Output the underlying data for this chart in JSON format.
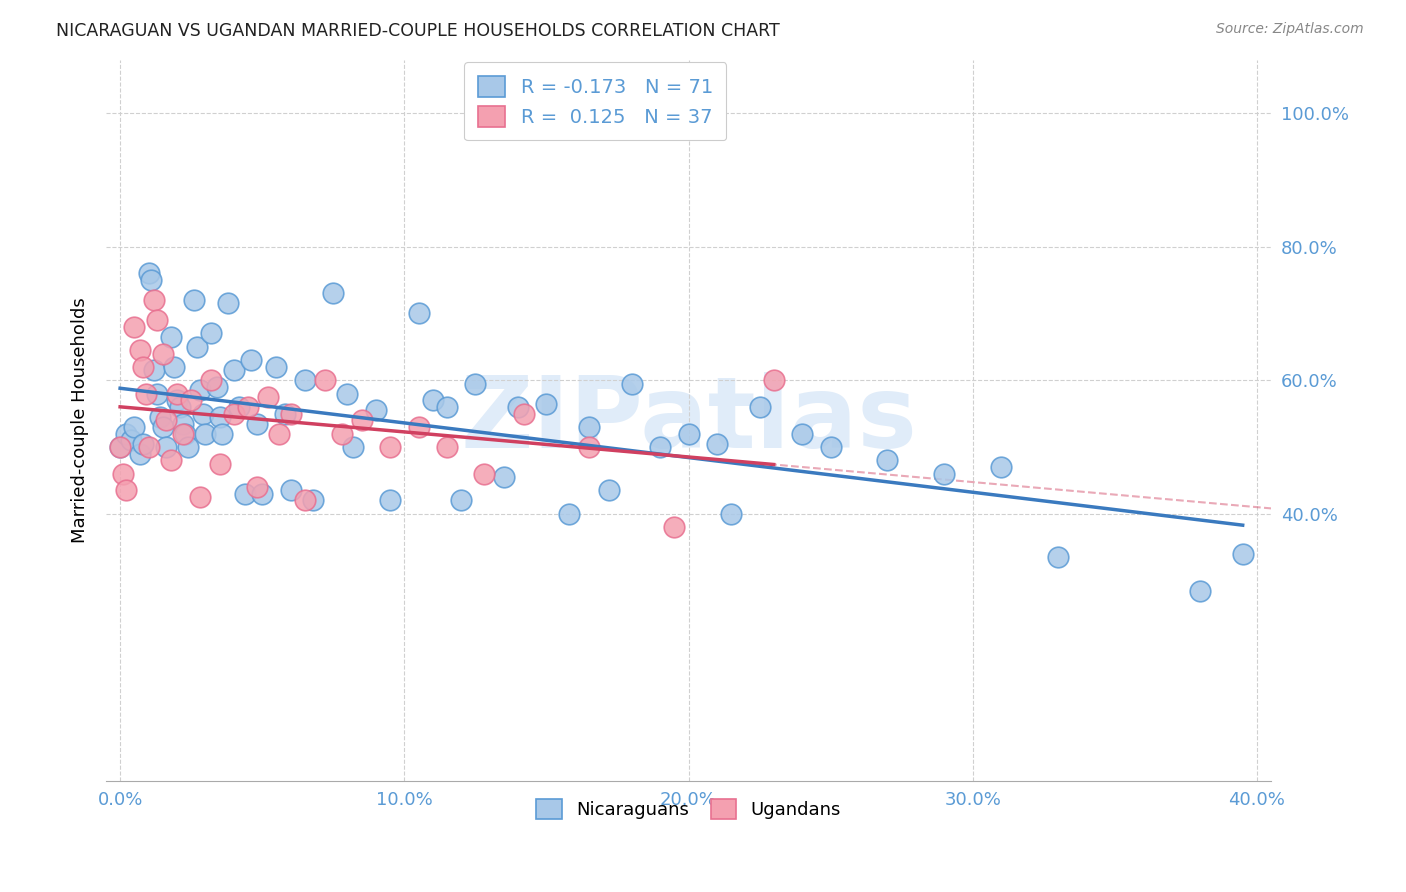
{
  "title": "NICARAGUAN VS UGANDAN MARRIED-COUPLE HOUSEHOLDS CORRELATION CHART",
  "source": "Source: ZipAtlas.com",
  "tick_color": "#5b9bd5",
  "ylabel": "Married-couple Households",
  "xlim": [
    -0.005,
    0.405
  ],
  "ylim": [
    0.0,
    1.08
  ],
  "xticks": [
    0.0,
    0.1,
    0.2,
    0.3,
    0.4
  ],
  "yticks": [
    0.4,
    0.6,
    0.8,
    1.0
  ],
  "ytick_labels": [
    "40.0%",
    "60.0%",
    "80.0%",
    "100.0%"
  ],
  "xtick_labels": [
    "0.0%",
    "10.0%",
    "20.0%",
    "30.0%",
    "40.0%"
  ],
  "legend_labels": [
    "Nicaraguans",
    "Ugandans"
  ],
  "blue_face_color": "#a8c8e8",
  "blue_edge_color": "#5b9bd5",
  "pink_face_color": "#f4a0b0",
  "pink_edge_color": "#e87090",
  "blue_line_color": "#3a7abf",
  "pink_line_color": "#d04060",
  "pink_dash_color": "#d04060",
  "watermark_text": "ZIPatlas",
  "watermark_color": "#cce0f5",
  "blue_R": -0.173,
  "pink_R": 0.125,
  "blue_N": 71,
  "pink_N": 37,
  "nicaraguan_x": [
    0.0,
    0.002,
    0.004,
    0.005,
    0.007,
    0.008,
    0.01,
    0.011,
    0.012,
    0.013,
    0.014,
    0.015,
    0.016,
    0.018,
    0.019,
    0.02,
    0.021,
    0.022,
    0.023,
    0.024,
    0.026,
    0.027,
    0.028,
    0.029,
    0.03,
    0.032,
    0.034,
    0.035,
    0.036,
    0.038,
    0.04,
    0.042,
    0.044,
    0.046,
    0.048,
    0.05,
    0.055,
    0.058,
    0.06,
    0.065,
    0.068,
    0.075,
    0.08,
    0.082,
    0.09,
    0.095,
    0.105,
    0.11,
    0.115,
    0.12,
    0.125,
    0.135,
    0.14,
    0.15,
    0.158,
    0.165,
    0.172,
    0.18,
    0.19,
    0.2,
    0.21,
    0.215,
    0.225,
    0.24,
    0.25,
    0.27,
    0.29,
    0.31,
    0.33,
    0.38,
    0.395
  ],
  "nicaraguan_y": [
    0.5,
    0.52,
    0.51,
    0.53,
    0.49,
    0.505,
    0.76,
    0.75,
    0.615,
    0.58,
    0.545,
    0.53,
    0.5,
    0.665,
    0.62,
    0.57,
    0.56,
    0.535,
    0.52,
    0.5,
    0.72,
    0.65,
    0.585,
    0.55,
    0.52,
    0.67,
    0.59,
    0.545,
    0.52,
    0.715,
    0.615,
    0.56,
    0.43,
    0.63,
    0.535,
    0.43,
    0.62,
    0.55,
    0.435,
    0.6,
    0.42,
    0.73,
    0.58,
    0.5,
    0.555,
    0.42,
    0.7,
    0.57,
    0.56,
    0.42,
    0.595,
    0.455,
    0.56,
    0.565,
    0.4,
    0.53,
    0.435,
    0.595,
    0.5,
    0.52,
    0.505,
    0.4,
    0.56,
    0.52,
    0.5,
    0.48,
    0.46,
    0.47,
    0.335,
    0.285,
    0.34
  ],
  "ugandan_x": [
    0.0,
    0.001,
    0.002,
    0.005,
    0.007,
    0.008,
    0.009,
    0.01,
    0.012,
    0.013,
    0.015,
    0.016,
    0.018,
    0.02,
    0.022,
    0.025,
    0.028,
    0.032,
    0.035,
    0.04,
    0.045,
    0.048,
    0.052,
    0.056,
    0.06,
    0.065,
    0.072,
    0.078,
    0.085,
    0.095,
    0.105,
    0.115,
    0.128,
    0.142,
    0.165,
    0.195,
    0.23
  ],
  "ugandan_y": [
    0.5,
    0.46,
    0.435,
    0.68,
    0.645,
    0.62,
    0.58,
    0.5,
    0.72,
    0.69,
    0.64,
    0.54,
    0.48,
    0.58,
    0.52,
    0.57,
    0.425,
    0.6,
    0.475,
    0.55,
    0.56,
    0.44,
    0.575,
    0.52,
    0.55,
    0.42,
    0.6,
    0.52,
    0.54,
    0.5,
    0.53,
    0.5,
    0.46,
    0.55,
    0.5,
    0.38,
    0.6
  ]
}
